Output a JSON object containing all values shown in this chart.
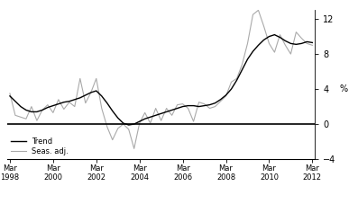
{
  "title": "",
  "ylabel": "%",
  "ylim": [
    -4,
    13
  ],
  "yticks": [
    -4,
    0,
    4,
    8,
    12
  ],
  "background_color": "#ffffff",
  "trend_color": "#000000",
  "seas_color": "#aaaaaa",
  "legend_trend": "Trend",
  "legend_seas": "Seas. adj.",
  "xtick_labels": [
    "Mar\n1998",
    "Mar\n2000",
    "Mar\n2002",
    "Mar\n2004",
    "Mar\n2006",
    "Mar\n2008",
    "Mar\n2010",
    "Mar\n2012"
  ],
  "xtick_positions": [
    0,
    8,
    16,
    24,
    32,
    40,
    48,
    56
  ],
  "trend_x": [
    0,
    1,
    2,
    3,
    4,
    5,
    6,
    7,
    8,
    9,
    10,
    11,
    12,
    13,
    14,
    15,
    16,
    17,
    18,
    19,
    20,
    21,
    22,
    23,
    24,
    25,
    26,
    27,
    28,
    29,
    30,
    31,
    32,
    33,
    34,
    35,
    36,
    37,
    38,
    39,
    40,
    41,
    42,
    43,
    44,
    45,
    46,
    47,
    48,
    49,
    50,
    51,
    52,
    53,
    54,
    55,
    56
  ],
  "trend_y": [
    3.2,
    2.6,
    2.0,
    1.6,
    1.4,
    1.4,
    1.6,
    1.9,
    2.1,
    2.3,
    2.5,
    2.6,
    2.8,
    3.0,
    3.3,
    3.6,
    3.8,
    3.2,
    2.4,
    1.5,
    0.7,
    0.1,
    -0.1,
    0.0,
    0.3,
    0.6,
    0.8,
    1.0,
    1.2,
    1.4,
    1.6,
    1.8,
    2.0,
    2.1,
    2.1,
    2.0,
    2.1,
    2.2,
    2.4,
    2.8,
    3.3,
    4.0,
    5.0,
    6.2,
    7.4,
    8.3,
    9.0,
    9.6,
    10.0,
    10.2,
    9.9,
    9.5,
    9.2,
    9.1,
    9.2,
    9.4,
    9.3
  ],
  "seas_x": [
    0,
    1,
    2,
    3,
    4,
    5,
    6,
    7,
    8,
    9,
    10,
    11,
    12,
    13,
    14,
    15,
    16,
    17,
    18,
    19,
    20,
    21,
    22,
    23,
    24,
    25,
    26,
    27,
    28,
    29,
    30,
    31,
    32,
    33,
    34,
    35,
    36,
    37,
    38,
    39,
    40,
    41,
    42,
    43,
    44,
    45,
    46,
    47,
    48,
    49,
    50,
    51,
    52,
    53,
    54,
    55,
    56
  ],
  "seas_y": [
    3.5,
    1.0,
    0.8,
    0.6,
    2.0,
    0.4,
    1.6,
    2.2,
    1.3,
    2.8,
    1.7,
    2.5,
    2.0,
    5.2,
    2.4,
    3.6,
    5.2,
    1.8,
    -0.3,
    -1.8,
    -0.5,
    0.0,
    -0.6,
    -2.8,
    0.1,
    1.3,
    0.1,
    1.8,
    0.4,
    1.8,
    1.0,
    2.2,
    2.3,
    1.8,
    0.3,
    2.5,
    2.3,
    1.8,
    2.0,
    2.6,
    3.2,
    4.8,
    5.2,
    6.8,
    9.2,
    12.5,
    13.0,
    11.2,
    9.2,
    8.2,
    10.2,
    9.0,
    8.0,
    10.5,
    9.8,
    9.2,
    9.0
  ]
}
